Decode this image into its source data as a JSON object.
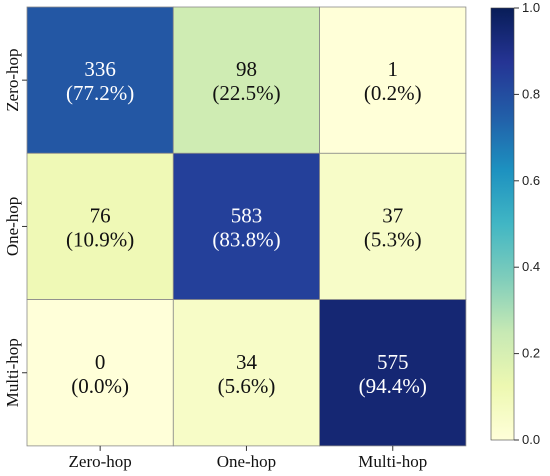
{
  "chart_data": {
    "type": "heatmap",
    "title": "",
    "xlabel": "",
    "ylabel": "",
    "x_categories": [
      "Zero-hop",
      "One-hop",
      "Multi-hop"
    ],
    "y_categories": [
      "Zero-hop",
      "One-hop",
      "Multi-hop"
    ],
    "values": [
      [
        0.772,
        0.225,
        0.002
      ],
      [
        0.109,
        0.838,
        0.053
      ],
      [
        0.0,
        0.056,
        0.944
      ]
    ],
    "counts": [
      [
        "336",
        "98",
        "1"
      ],
      [
        "76",
        "583",
        "37"
      ],
      [
        "0",
        "34",
        "575"
      ]
    ],
    "percent_labels": [
      [
        "(77.2%)",
        "(22.5%)",
        "(0.2%)"
      ],
      [
        "(10.9%)",
        "(83.8%)",
        "(5.3%)"
      ],
      [
        "(0.0%)",
        "(5.6%)",
        "(94.4%)"
      ]
    ],
    "colorbar": {
      "range": [
        0.0,
        1.0
      ],
      "ticks": [
        "0.0",
        "0.2",
        "0.4",
        "0.6",
        "0.8",
        "1.0"
      ],
      "colormap": "YlGnBu"
    },
    "grid": false,
    "legend": "colorbar-right"
  }
}
